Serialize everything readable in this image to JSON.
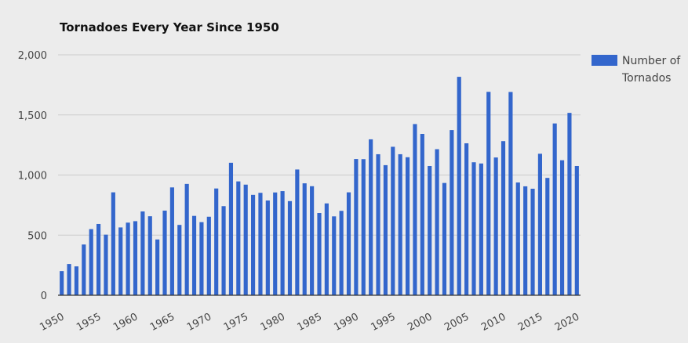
{
  "chart_data": {
    "type": "bar",
    "title": "Tornadoes Every Year Since 1950",
    "xlabel": "",
    "ylabel": "",
    "ylim": [
      0,
      2000
    ],
    "yticks": [
      "0",
      "500",
      "1,000",
      "1,500",
      "2,000"
    ],
    "ytick_values": [
      0,
      500,
      1000,
      1500,
      2000
    ],
    "xticks": [
      "1950",
      "1955",
      "1960",
      "1965",
      "1970",
      "1975",
      "1980",
      "1985",
      "1990",
      "1995",
      "2000",
      "2005",
      "2010",
      "2015",
      "2020"
    ],
    "xtick_values": [
      1950,
      1955,
      1960,
      1965,
      1970,
      1975,
      1980,
      1985,
      1990,
      1995,
      2000,
      2005,
      2010,
      2015,
      2020
    ],
    "legend_position": "right",
    "grid": true,
    "bar_color": "#3366cc",
    "series": [
      {
        "name": "Number of Tornados",
        "x": [
          1950,
          1951,
          1952,
          1953,
          1954,
          1955,
          1956,
          1957,
          1958,
          1959,
          1960,
          1961,
          1962,
          1963,
          1964,
          1965,
          1966,
          1967,
          1968,
          1969,
          1970,
          1971,
          1972,
          1973,
          1974,
          1975,
          1976,
          1977,
          1978,
          1979,
          1980,
          1981,
          1982,
          1983,
          1984,
          1985,
          1986,
          1987,
          1988,
          1989,
          1990,
          1991,
          1992,
          1993,
          1994,
          1995,
          1996,
          1997,
          1998,
          1999,
          2000,
          2001,
          2002,
          2003,
          2004,
          2005,
          2006,
          2007,
          2008,
          2009,
          2010,
          2011,
          2012,
          2013,
          2014,
          2015,
          2016,
          2017,
          2018,
          2019,
          2020
        ],
        "values": [
          201,
          260,
          240,
          422,
          550,
          593,
          504,
          856,
          564,
          604,
          616,
          697,
          657,
          464,
          704,
          897,
          585,
          926,
          660,
          608,
          653,
          888,
          741,
          1102,
          947,
          920,
          835,
          852,
          788,
          855,
          866,
          783,
          1046,
          931,
          907,
          684,
          764,
          656,
          702,
          856,
          1133,
          1132,
          1297,
          1173,
          1082,
          1235,
          1173,
          1148,
          1424,
          1342,
          1075,
          1215,
          934,
          1374,
          1817,
          1264,
          1106,
          1096,
          1692,
          1146,
          1282,
          1691,
          938,
          906,
          886,
          1177,
          976,
          1429,
          1123,
          1517,
          1075
        ]
      }
    ]
  }
}
